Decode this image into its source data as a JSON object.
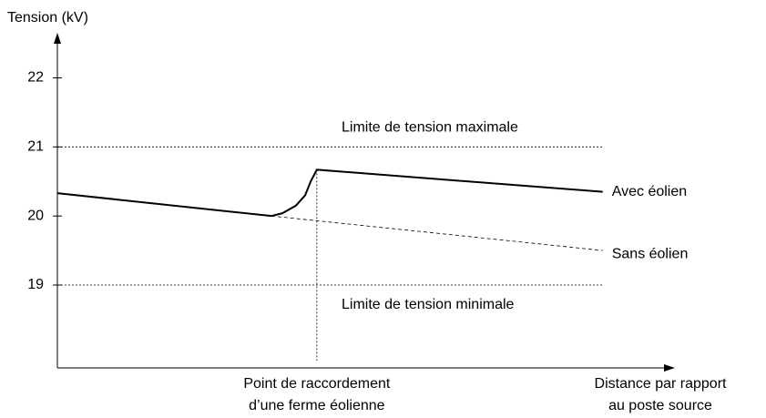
{
  "chart_data": {
    "type": "line",
    "y_label": "Tension (kV)",
    "x_label": [
      "Distance par rapport",
      "au poste source"
    ],
    "xlim": [
      0,
      100
    ],
    "ylim": [
      17.8,
      22.6
    ],
    "yticks": [
      19,
      20,
      21,
      22
    ],
    "grid": false,
    "limits": [
      {
        "value": 21,
        "label": "Limite de tension maximale"
      },
      {
        "value": 19,
        "label": "Limite de tension minimale"
      }
    ],
    "connection": {
      "x": 42.2,
      "label": [
        "Point de raccordement",
        "d’une ferme éolienne"
      ]
    },
    "series": [
      {
        "name": "Avec éolien",
        "color": "#000000",
        "style": "solid",
        "x": [
          0,
          34.8,
          36.6,
          38.8,
          40.3,
          41.2,
          42.2,
          88.7
        ],
        "values": [
          20.33,
          20.0,
          20.04,
          20.15,
          20.3,
          20.5,
          20.67,
          20.35
        ]
      },
      {
        "name": "Sans éolien",
        "color": "#000000",
        "style": "dashed",
        "x": [
          34.8,
          88.7
        ],
        "values": [
          20.0,
          19.5
        ]
      }
    ]
  }
}
